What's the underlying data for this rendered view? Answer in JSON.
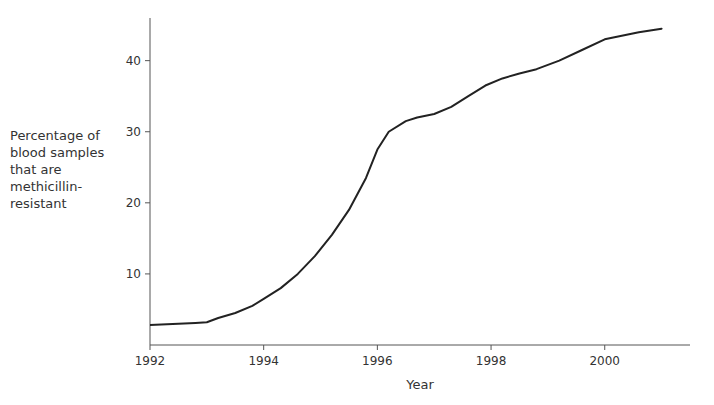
{
  "chart_data": {
    "type": "line",
    "x": [
      1992.0,
      1992.2,
      1992.5,
      1992.8,
      1993.0,
      1993.2,
      1993.5,
      1993.8,
      1994.0,
      1994.3,
      1994.6,
      1994.9,
      1995.2,
      1995.5,
      1995.8,
      1996.0,
      1996.2,
      1996.5,
      1996.7,
      1997.0,
      1997.3,
      1997.6,
      1997.9,
      1998.2,
      1998.5,
      1998.8,
      1999.2,
      1999.6,
      2000.0,
      2000.3,
      2000.6,
      2001.0
    ],
    "values": [
      2.8,
      2.9,
      3.0,
      3.1,
      3.2,
      3.8,
      4.5,
      5.5,
      6.5,
      8.0,
      10.0,
      12.5,
      15.5,
      19.0,
      23.5,
      27.5,
      30.0,
      31.5,
      32.0,
      32.5,
      33.5,
      35.0,
      36.5,
      37.5,
      38.2,
      38.8,
      40.0,
      41.5,
      43.0,
      43.5,
      44.0,
      44.5
    ],
    "xlabel": "Year",
    "ylabel": "Percentage of\nblood samples\nthat are\nmethicillin-\nresistant",
    "xlim": [
      1992,
      2001.5
    ],
    "ylim": [
      0,
      46
    ],
    "xticks": [
      1992,
      1994,
      1996,
      1998,
      2000
    ],
    "yticks": [
      10,
      20,
      30,
      40
    ],
    "color": "#222222",
    "grid": false
  }
}
